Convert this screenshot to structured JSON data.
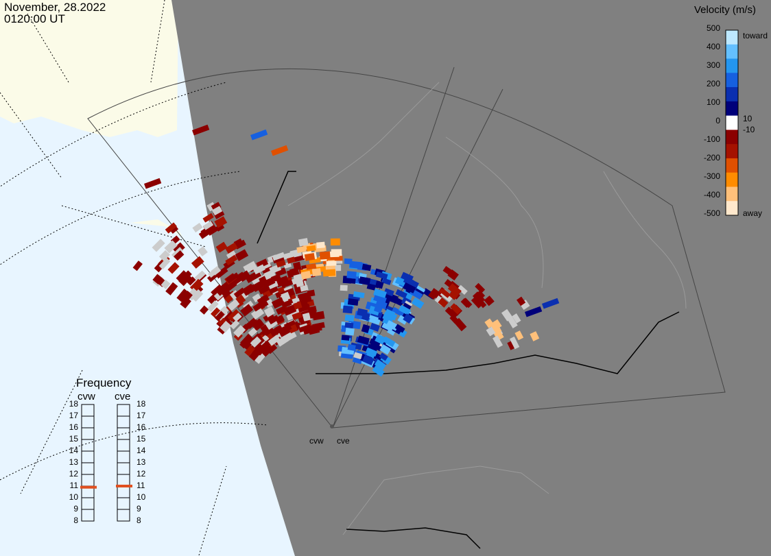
{
  "header": {
    "date": "November, 28.2022",
    "time": "0120:00 UT"
  },
  "colorbar": {
    "title": "Velocity (m/s)",
    "ticks": [
      "500",
      "400",
      "300",
      "200",
      "100",
      "0",
      "-100",
      "-200",
      "-300",
      "-400",
      "-500"
    ],
    "side_labels": {
      "toward": "toward",
      "small_pos": "10",
      "small_neg": "-10",
      "away": "away"
    },
    "colors": [
      "#ffe8cc",
      "#ffc07a",
      "#ff8c00",
      "#e05000",
      "#a51200",
      "#8b0000",
      "#ffffff",
      "#00007a",
      "#0a2fb0",
      "#1660e0",
      "#2496f0",
      "#64c0ff",
      "#bde8ff"
    ]
  },
  "radars": {
    "west": "cvw",
    "east": "cve"
  },
  "frequency": {
    "title": "Frequency",
    "left_label": "cvw",
    "right_label": "cve",
    "scale": [
      "18",
      "17",
      "16",
      "15",
      "14",
      "13",
      "12",
      "11",
      "10",
      "9",
      "8"
    ],
    "cvw_value": 10.9,
    "cve_value": 11.0,
    "marker_color": "#e05020"
  },
  "map_colors": {
    "ocean": "#e8f5ff",
    "land_lit": "#fbfbe8",
    "night": "#808080",
    "boundary": "#000000",
    "no_data": "#cccccc"
  }
}
